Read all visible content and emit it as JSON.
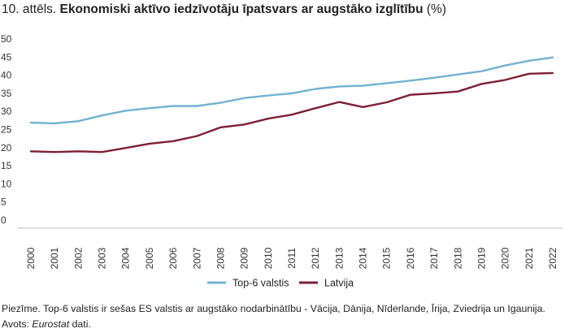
{
  "header": {
    "figure_number": "10. attēls.",
    "title": "Ekonomiski aktīvo iedzīvotāju īpatsvars ar augstāko izglītību",
    "unit": "(%)"
  },
  "chart_data": {
    "type": "line",
    "title": "Ekonomiski aktīvo iedzīvotāju īpatsvars ar augstāko izglītību",
    "ylabel": "%",
    "xlabel": "",
    "ylim": [
      0,
      50
    ],
    "yticks": [
      "0",
      "5",
      "10",
      "15",
      "20",
      "25",
      "30",
      "35",
      "40",
      "45",
      "50"
    ],
    "x": [
      "2000",
      "2001",
      "2002",
      "2003",
      "2004",
      "2005",
      "2006",
      "2007",
      "2008",
      "2009",
      "2010",
      "2011",
      "2012",
      "2013",
      "2014",
      "2015",
      "2016",
      "2017",
      "2018",
      "2019",
      "2020",
      "2021",
      "2022"
    ],
    "grid": false,
    "legend_position": "bottom",
    "series": [
      {
        "name": "Top-6 valstis",
        "color": "#74b1cf",
        "values": [
          26.9,
          26.7,
          27.3,
          28.9,
          30.2,
          30.9,
          31.5,
          31.5,
          32.4,
          33.7,
          34.4,
          35.0,
          36.2,
          36.9,
          37.1,
          37.8,
          38.5,
          39.3,
          40.2,
          41.1,
          42.7,
          44.0,
          44.9
        ]
      },
      {
        "name": "Latvija",
        "color": "#7d1f35",
        "values": [
          19.0,
          18.8,
          19.0,
          18.8,
          19.9,
          21.1,
          21.8,
          23.2,
          25.6,
          26.4,
          28.0,
          29.1,
          30.9,
          32.6,
          31.2,
          32.5,
          34.6,
          35.0,
          35.5,
          37.6,
          38.7,
          40.4,
          40.6
        ]
      }
    ]
  },
  "footer": {
    "note": "Piezīme. Top-6 valstis ir sešas ES valstis ar augstāko nodarbinātību - Vācija, Dānija, Nīderlande, Īrija, Zviedrija un Igaunija.",
    "source_prefix": "Avots:",
    "source_name": "Eurostat",
    "source_suffix": "dati."
  }
}
